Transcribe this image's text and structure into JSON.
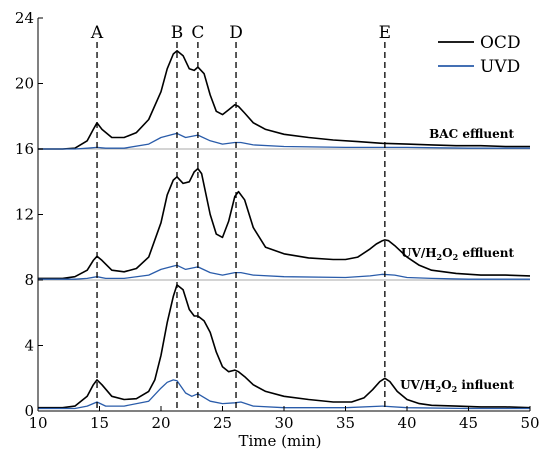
{
  "chart_data": {
    "type": "line",
    "xlabel": "Time (min)",
    "xlim": [
      10,
      50
    ],
    "x_ticks": [
      10,
      15,
      20,
      25,
      30,
      35,
      40,
      45,
      50
    ],
    "colors": {
      "OCD": "#000000",
      "UVD": "#2a5caa",
      "baseline": "#aaaaaa"
    },
    "legend": {
      "placement": "top-right",
      "entries": [
        "OCD",
        "UVD"
      ]
    },
    "peak_markers": [
      {
        "label": "A",
        "x": 14.8,
        "panels": [
          0,
          1,
          2
        ]
      },
      {
        "label": "B",
        "x": 21.3,
        "panels": [
          0,
          1,
          2
        ]
      },
      {
        "label": "C",
        "x": 23.0,
        "panels": [
          0,
          1,
          2
        ]
      },
      {
        "label": "D",
        "x": 26.1,
        "panels": [
          0,
          1,
          2
        ]
      },
      {
        "label": "E",
        "x": 38.2,
        "panels": [
          1,
          2
        ]
      }
    ],
    "panels": [
      {
        "label": "BAC effluent",
        "label_parts": [
          {
            "t": "BAC effluent"
          }
        ],
        "ylim": [
          16,
          24
        ],
        "y_ticks": [
          16,
          20,
          24
        ],
        "series": [
          {
            "name": "OCD",
            "x": [
              10,
              12,
              13,
              14,
              14.5,
              14.8,
              15.2,
              16,
              17,
              18,
              19,
              20,
              20.5,
              21,
              21.3,
              21.8,
              22.3,
              22.7,
              23,
              23.5,
              24,
              24.5,
              25,
              25.5,
              26,
              26.3,
              26.8,
              27.5,
              28.5,
              30,
              32,
              34,
              36,
              38,
              40,
              42,
              44,
              46,
              48,
              50
            ],
            "y": [
              16.0,
              16.0,
              16.05,
              16.5,
              17.2,
              17.6,
              17.2,
              16.7,
              16.7,
              17.0,
              17.8,
              19.5,
              20.9,
              21.8,
              22.0,
              21.7,
              20.9,
              20.8,
              21.0,
              20.6,
              19.3,
              18.3,
              18.1,
              18.4,
              18.7,
              18.6,
              18.2,
              17.6,
              17.2,
              16.9,
              16.7,
              16.55,
              16.45,
              16.35,
              16.3,
              16.25,
              16.2,
              16.2,
              16.15,
              16.15
            ]
          },
          {
            "name": "UVD",
            "x": [
              10,
              13,
              14,
              14.8,
              15.5,
              17,
              19,
              20,
              21,
              21.3,
              22,
              23,
              24,
              25,
              26,
              26.5,
              27.5,
              30,
              35,
              40,
              45,
              50
            ],
            "y": [
              16.0,
              16.0,
              16.05,
              16.1,
              16.05,
              16.05,
              16.3,
              16.7,
              16.9,
              16.95,
              16.7,
              16.85,
              16.5,
              16.3,
              16.4,
              16.4,
              16.25,
              16.15,
              16.1,
              16.1,
              16.05,
              16.05
            ]
          }
        ]
      },
      {
        "label": "UV/H2O2 effluent",
        "label_parts": [
          {
            "t": "UV/H"
          },
          {
            "t": "2",
            "sub": true
          },
          {
            "t": "O"
          },
          {
            "t": "2",
            "sub": true
          },
          {
            "t": " effluent"
          }
        ],
        "ylim": [
          8,
          16
        ],
        "y_ticks": [
          8,
          12,
          16
        ],
        "series": [
          {
            "name": "OCD",
            "x": [
              10,
              12,
              13,
              14,
              14.5,
              14.8,
              15.2,
              16,
              17,
              18,
              19,
              20,
              20.5,
              21,
              21.3,
              21.8,
              22.3,
              22.7,
              23,
              23.3,
              24,
              24.5,
              25,
              25.5,
              26,
              26.3,
              26.8,
              27.5,
              28.5,
              30,
              32,
              34,
              35,
              36,
              37,
              37.5,
              38,
              38.2,
              38.5,
              39,
              40,
              41,
              42,
              44,
              46,
              48,
              50
            ],
            "y": [
              8.1,
              8.1,
              8.2,
              8.6,
              9.2,
              9.45,
              9.2,
              8.6,
              8.5,
              8.7,
              9.4,
              11.5,
              13.2,
              14.1,
              14.3,
              13.9,
              14.0,
              14.6,
              14.8,
              14.5,
              12.0,
              10.8,
              10.6,
              11.6,
              13.1,
              13.4,
              12.9,
              11.2,
              10.0,
              9.6,
              9.35,
              9.25,
              9.25,
              9.4,
              9.9,
              10.2,
              10.4,
              10.45,
              10.4,
              10.1,
              9.4,
              8.9,
              8.6,
              8.4,
              8.3,
              8.3,
              8.25
            ]
          },
          {
            "name": "UVD",
            "x": [
              10,
              13,
              14,
              14.8,
              15.5,
              17,
              19,
              20,
              21,
              21.3,
              22,
              23,
              24,
              25,
              26,
              26.5,
              27.5,
              30,
              35,
              37,
              38,
              39,
              40,
              42,
              45,
              50
            ],
            "y": [
              8.05,
              8.05,
              8.1,
              8.2,
              8.1,
              8.1,
              8.3,
              8.65,
              8.85,
              8.9,
              8.65,
              8.8,
              8.45,
              8.3,
              8.45,
              8.45,
              8.3,
              8.2,
              8.15,
              8.25,
              8.35,
              8.3,
              8.15,
              8.1,
              8.05,
              8.05
            ]
          }
        ]
      },
      {
        "label": "UV/H2O2 influent",
        "label_parts": [
          {
            "t": "UV/H"
          },
          {
            "t": "2",
            "sub": true
          },
          {
            "t": "O"
          },
          {
            "t": "2",
            "sub": true
          },
          {
            "t": " influent"
          }
        ],
        "ylim": [
          0,
          8
        ],
        "y_ticks": [
          0,
          4,
          8
        ],
        "series": [
          {
            "name": "OCD",
            "x": [
              10,
              12,
              13,
              14,
              14.5,
              14.8,
              15.2,
              16,
              17,
              18,
              19,
              19.5,
              20,
              20.5,
              21,
              21.3,
              21.8,
              22.3,
              22.7,
              23,
              23.5,
              24,
              24.5,
              25,
              25.5,
              26,
              26.3,
              26.8,
              27.5,
              28.5,
              30,
              32,
              34,
              35.5,
              36.5,
              37.2,
              37.8,
              38.2,
              38.6,
              39.2,
              40,
              41,
              42,
              44,
              46,
              48,
              50
            ],
            "y": [
              0.2,
              0.2,
              0.3,
              0.9,
              1.6,
              1.9,
              1.6,
              0.9,
              0.7,
              0.75,
              1.2,
              1.9,
              3.4,
              5.4,
              7.0,
              7.7,
              7.4,
              6.2,
              5.8,
              5.8,
              5.5,
              4.8,
              3.6,
              2.7,
              2.4,
              2.5,
              2.4,
              2.1,
              1.6,
              1.2,
              0.9,
              0.7,
              0.55,
              0.55,
              0.8,
              1.3,
              1.8,
              2.0,
              1.8,
              1.2,
              0.7,
              0.45,
              0.35,
              0.3,
              0.25,
              0.25,
              0.2
            ]
          },
          {
            "name": "UVD",
            "x": [
              10,
              13,
              14,
              14.8,
              15.5,
              17,
              19,
              20,
              20.5,
              21,
              21.3,
              22,
              22.5,
              23,
              24,
              25,
              26,
              26.5,
              27.5,
              30,
              35,
              38,
              40,
              45,
              50
            ],
            "y": [
              0.15,
              0.15,
              0.3,
              0.55,
              0.3,
              0.3,
              0.6,
              1.4,
              1.75,
              1.9,
              1.85,
              1.1,
              0.9,
              1.05,
              0.6,
              0.45,
              0.5,
              0.55,
              0.3,
              0.2,
              0.2,
              0.3,
              0.2,
              0.15,
              0.15
            ]
          }
        ]
      }
    ]
  }
}
